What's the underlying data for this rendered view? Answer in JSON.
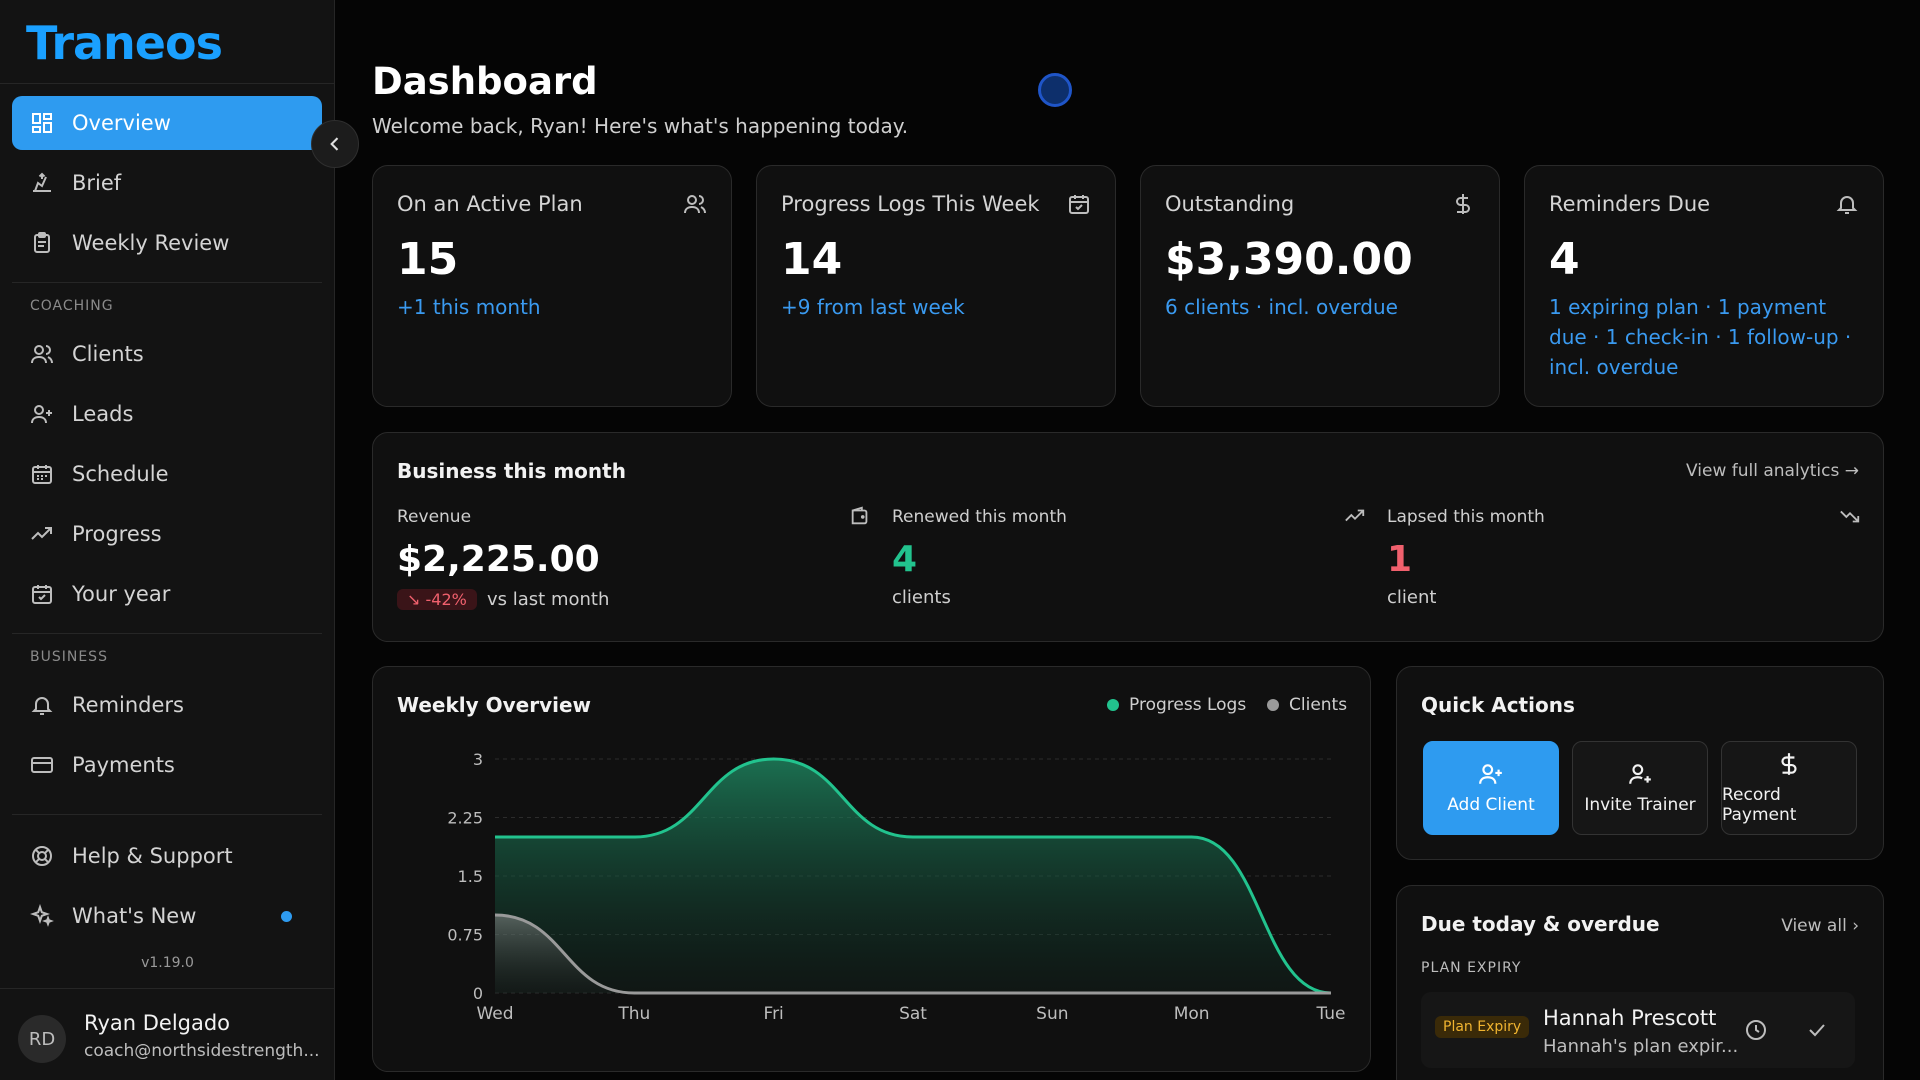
{
  "app": {
    "name": "Traneos",
    "version": "v1.19.0"
  },
  "sidebar": {
    "top_items": [
      {
        "label": "Overview",
        "icon": "grid-icon",
        "active": true
      },
      {
        "label": "Brief",
        "icon": "brief-icon"
      },
      {
        "label": "Weekly Review",
        "icon": "clipboard-icon"
      }
    ],
    "coaching_label": "COACHING",
    "coaching_items": [
      {
        "label": "Clients",
        "icon": "users-icon"
      },
      {
        "label": "Leads",
        "icon": "user-plus-icon"
      },
      {
        "label": "Schedule",
        "icon": "calendar-icon"
      },
      {
        "label": "Progress",
        "icon": "trending-up-icon"
      },
      {
        "label": "Your year",
        "icon": "calendar-check-icon"
      }
    ],
    "business_label": "BUSINESS",
    "business_items": [
      {
        "label": "Reminders",
        "icon": "bell-icon"
      },
      {
        "label": "Payments",
        "icon": "credit-card-icon"
      }
    ],
    "footer_items": [
      {
        "label": "Help & Support",
        "icon": "lifebuoy-icon"
      },
      {
        "label": "What's New",
        "icon": "sparkles-icon",
        "has_dot": true
      }
    ],
    "user": {
      "initials": "RD",
      "name": "Ryan Delgado",
      "email": "coach@northsidestrength..."
    }
  },
  "header": {
    "title": "Dashboard",
    "subtitle": "Welcome back, Ryan! Here's what's happening today."
  },
  "stats": [
    {
      "label": "On an Active Plan",
      "value": "15",
      "sub": "+1 this month",
      "icon": "users-icon"
    },
    {
      "label": "Progress Logs This Week",
      "value": "14",
      "sub": "+9 from last week",
      "icon": "calendar-check-icon"
    },
    {
      "label": "Outstanding",
      "value": "$3,390.00",
      "sub": "6 clients · incl. overdue",
      "icon": "dollar-icon"
    },
    {
      "label": "Reminders Due",
      "value": "4",
      "sub": "1 expiring plan · 1 payment due · 1 check-in · 1 follow-up · incl. overdue",
      "icon": "bell-icon"
    }
  ],
  "business": {
    "title": "Business this month",
    "link": "View full analytics →",
    "revenue": {
      "label": "Revenue",
      "value": "$2,225.00",
      "change": "↘ -42%",
      "vs": "vs last month",
      "icon": "wallet-icon"
    },
    "renewed": {
      "label": "Renewed this month",
      "value": "4",
      "unit": "clients",
      "icon": "trending-up-icon",
      "color": "#22c38e"
    },
    "lapsed": {
      "label": "Lapsed this month",
      "value": "1",
      "unit": "client",
      "icon": "trending-down-icon",
      "color": "#f0606d"
    }
  },
  "weekly": {
    "title": "Weekly Overview",
    "legend": [
      {
        "name": "Progress Logs",
        "color": "#22c38e"
      },
      {
        "name": "Clients",
        "color": "#9a9a9a"
      }
    ]
  },
  "chart_data": {
    "type": "area",
    "title": "Weekly Overview",
    "categories": [
      "Wed",
      "Thu",
      "Fri",
      "Sat",
      "Sun",
      "Mon",
      "Tue"
    ],
    "ylim": [
      0,
      3
    ],
    "yticks": [
      "0",
      "0.75",
      "1.5",
      "2.25",
      "3"
    ],
    "grid": true,
    "legend_position": "top-right",
    "series": [
      {
        "name": "Progress Logs",
        "values": [
          2,
          2,
          3,
          2,
          2,
          2,
          0
        ],
        "color": "#22c38e"
      },
      {
        "name": "Clients",
        "values": [
          1,
          0,
          0,
          0,
          0,
          0,
          0
        ],
        "color": "#9a9a9a"
      }
    ]
  },
  "quick_actions": {
    "title": "Quick Actions",
    "buttons": [
      {
        "label": "Add Client",
        "icon": "user-plus-icon",
        "primary": true
      },
      {
        "label": "Invite Trainer",
        "icon": "user-add-icon"
      },
      {
        "label": "Record Payment",
        "icon": "dollar-icon"
      }
    ]
  },
  "due": {
    "title": "Due today & overdue",
    "link": "View all ›",
    "section": "PLAN EXPIRY",
    "item": {
      "badge": "Plan Expiry",
      "name": "Hannah Prescott",
      "desc": "Hannah's plan expir..."
    }
  }
}
